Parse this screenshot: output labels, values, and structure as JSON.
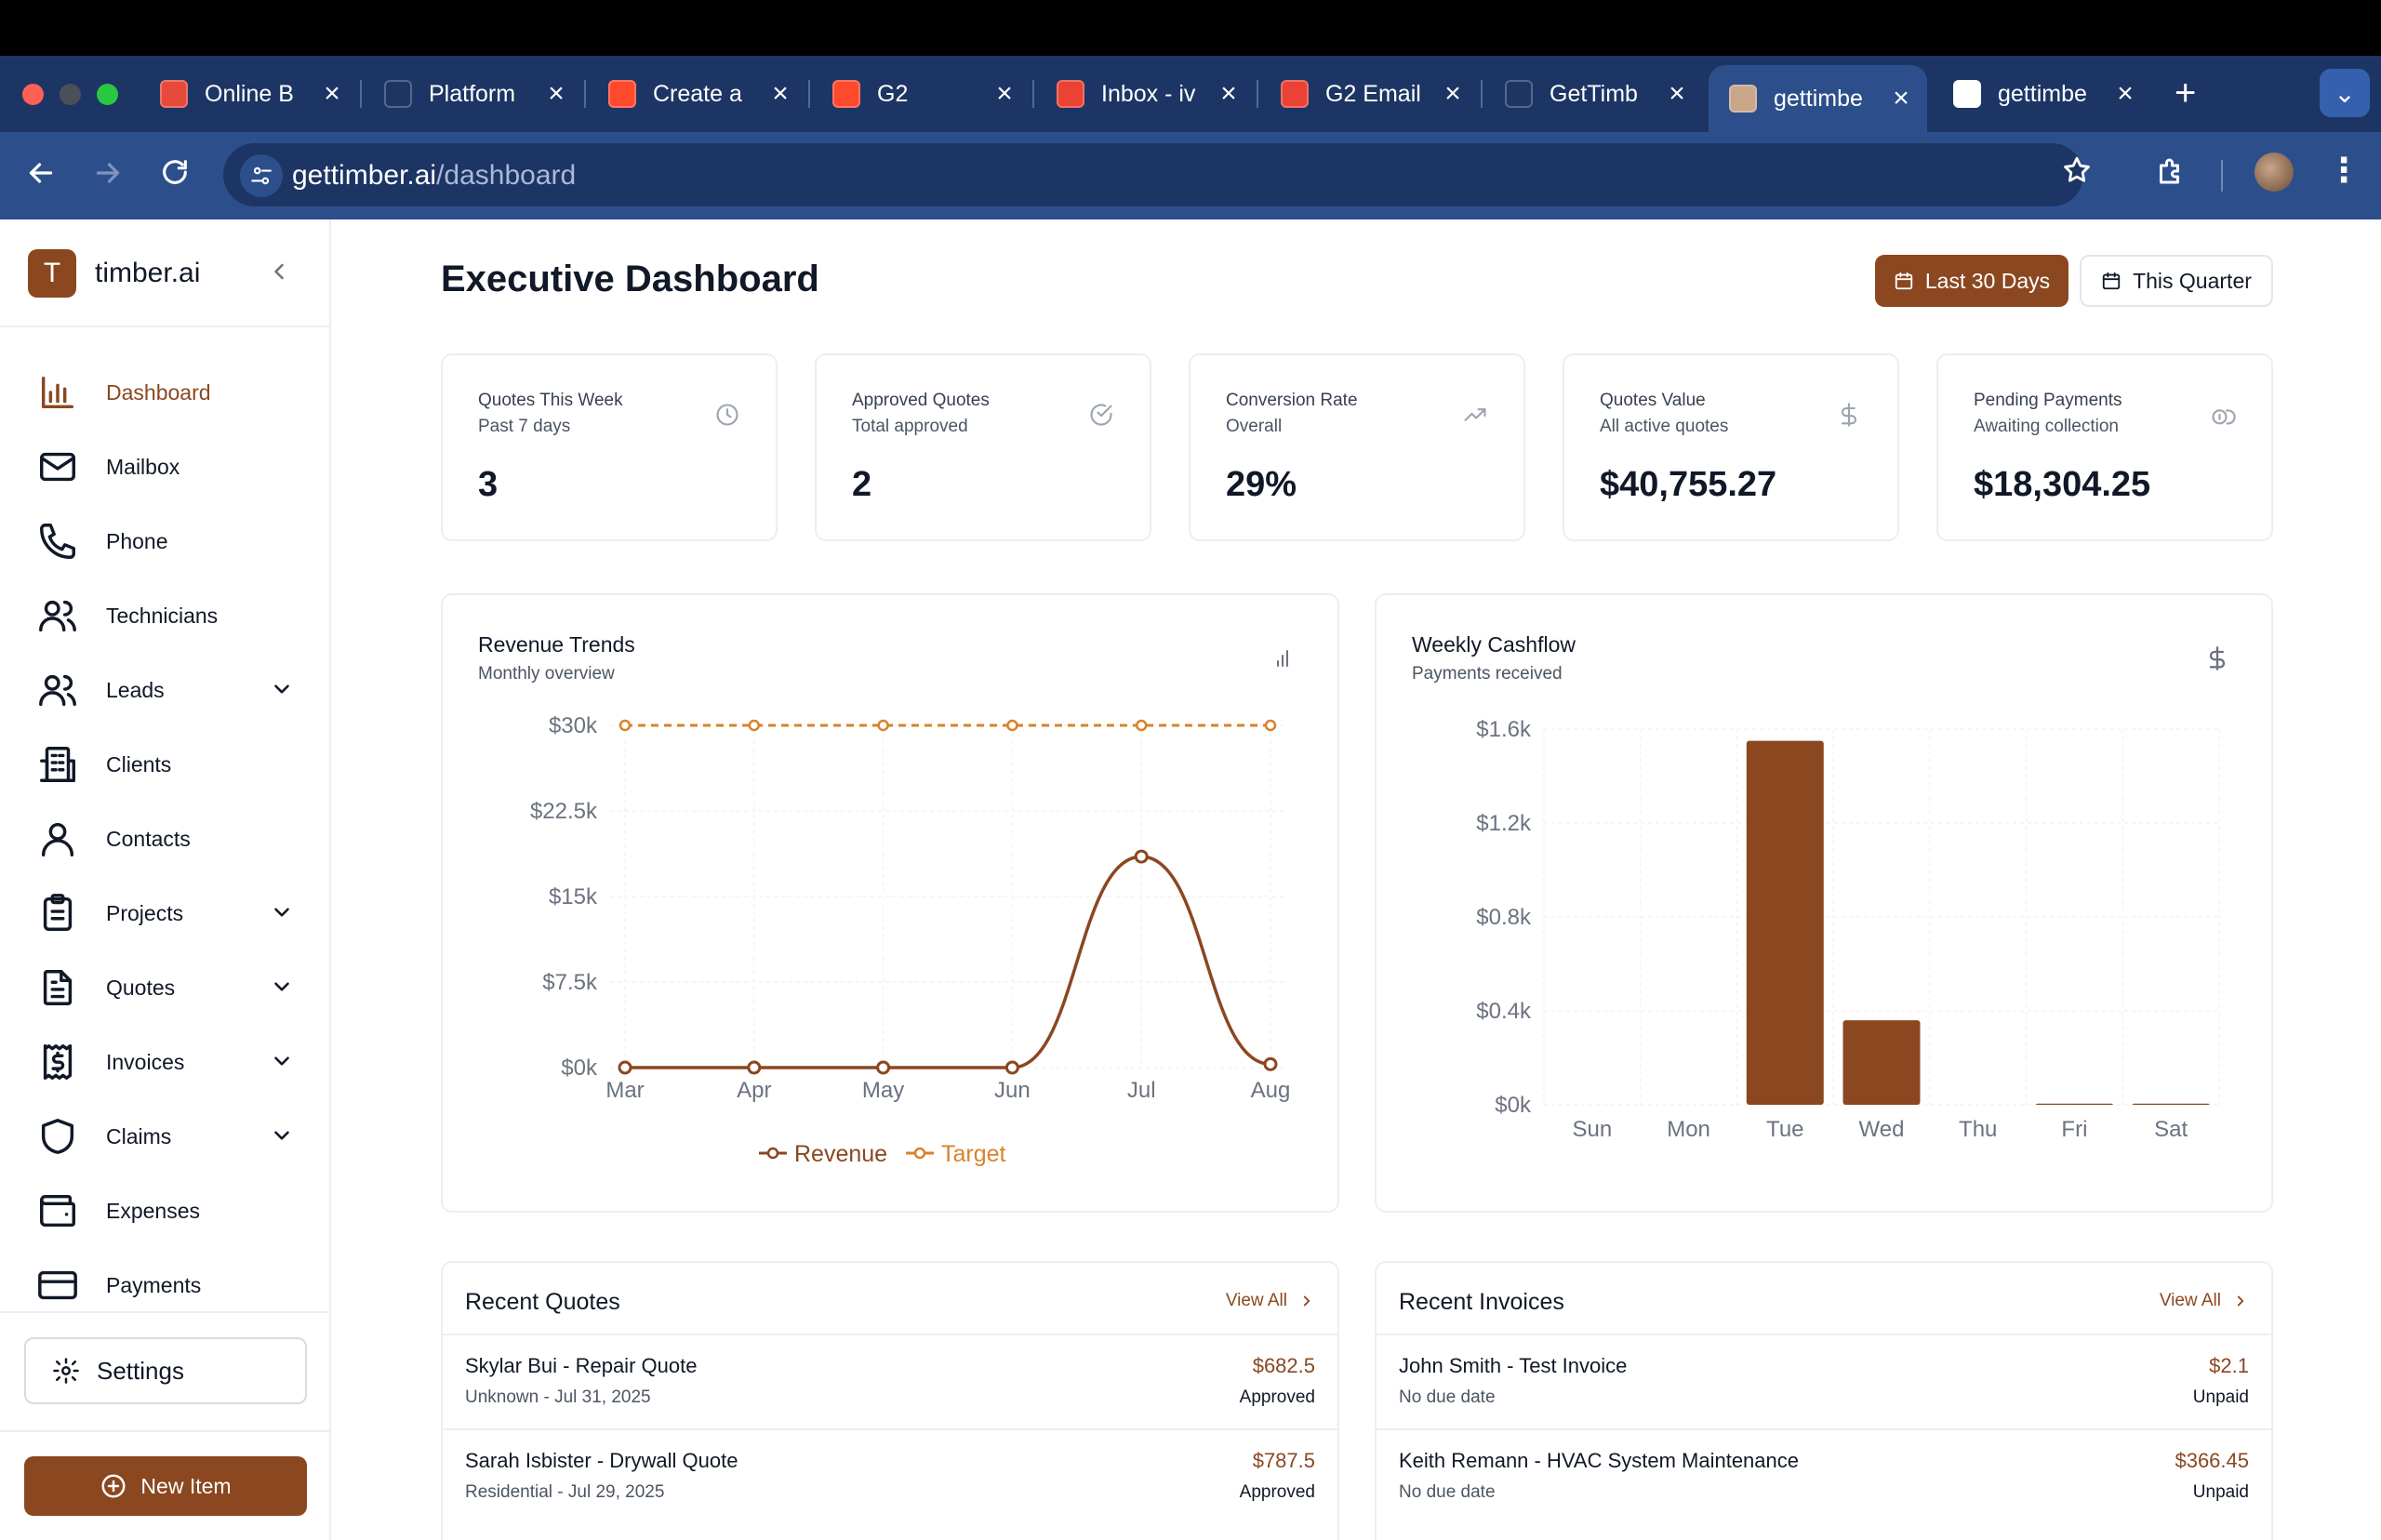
{
  "browser": {
    "tabs": [
      {
        "title": "Online B",
        "favicon": "app-icon",
        "color": "#e64a3c"
      },
      {
        "title": "Platform",
        "favicon": "slashed-circle-icon",
        "color": "#1d3564"
      },
      {
        "title": "Create a",
        "favicon": "g2-icon",
        "color": "#ff492c"
      },
      {
        "title": "G2",
        "favicon": "g2-icon",
        "color": "#ff492c"
      },
      {
        "title": "Inbox - iv",
        "favicon": "gmail-icon",
        "color": "#ea4335"
      },
      {
        "title": "G2 Email",
        "favicon": "gmail-icon",
        "color": "#ea4335"
      },
      {
        "title": "GetTimb",
        "favicon": "openai-icon",
        "color": "#1d3564"
      },
      {
        "title": "gettimbe",
        "favicon": "image-icon",
        "color": "#c9a58a"
      },
      {
        "title": "gettimbe",
        "favicon": "google-icon",
        "color": "#ffffff"
      }
    ],
    "url_domain": "gettimber.ai",
    "url_path": "/dashboard"
  },
  "sidebar": {
    "logo_letter": "T",
    "brand": "timber.ai",
    "items": [
      {
        "label": "Dashboard",
        "icon": "bar-chart-icon",
        "active": true,
        "expandable": false
      },
      {
        "label": "Mailbox",
        "icon": "mail-icon",
        "active": false,
        "expandable": false
      },
      {
        "label": "Phone",
        "icon": "phone-icon",
        "active": false,
        "expandable": false
      },
      {
        "label": "Technicians",
        "icon": "users-icon",
        "active": false,
        "expandable": false
      },
      {
        "label": "Leads",
        "icon": "users-icon",
        "active": false,
        "expandable": true
      },
      {
        "label": "Clients",
        "icon": "building-icon",
        "active": false,
        "expandable": false
      },
      {
        "label": "Contacts",
        "icon": "user-icon",
        "active": false,
        "expandable": false
      },
      {
        "label": "Projects",
        "icon": "clipboard-icon",
        "active": false,
        "expandable": true
      },
      {
        "label": "Quotes",
        "icon": "file-text-icon",
        "active": false,
        "expandable": true
      },
      {
        "label": "Invoices",
        "icon": "receipt-icon",
        "active": false,
        "expandable": true
      },
      {
        "label": "Claims",
        "icon": "shield-icon",
        "active": false,
        "expandable": true
      },
      {
        "label": "Expenses",
        "icon": "wallet-icon",
        "active": false,
        "expandable": false
      },
      {
        "label": "Payments",
        "icon": "credit-card-icon",
        "active": false,
        "expandable": false
      }
    ],
    "settings_label": "Settings",
    "new_item_label": "New Item"
  },
  "header": {
    "title": "Executive Dashboard",
    "range_active": "Last 30 Days",
    "range_other": "This Quarter"
  },
  "stats": [
    {
      "title": "Quotes This Week",
      "sub": "Past 7 days",
      "value": "3",
      "icon": "clock-icon"
    },
    {
      "title": "Approved Quotes",
      "sub": "Total approved",
      "value": "2",
      "icon": "check-circle-icon"
    },
    {
      "title": "Conversion Rate",
      "sub": "Overall",
      "value": "29%",
      "icon": "trending-up-icon"
    },
    {
      "title": "Quotes Value",
      "sub": "All active quotes",
      "value": "$40,755.27",
      "icon": "dollar-icon"
    },
    {
      "title": "Pending Payments",
      "sub": "Awaiting collection",
      "value": "$18,304.25",
      "icon": "coins-icon"
    }
  ],
  "revenue_card": {
    "title": "Revenue Trends",
    "sub": "Monthly overview",
    "icon": "bar-chart-icon"
  },
  "cashflow_card": {
    "title": "Weekly Cashflow",
    "sub": "Payments received",
    "icon": "dollar-icon"
  },
  "chart_data": [
    {
      "type": "line",
      "title": "Revenue Trends",
      "subtitle": "Monthly overview",
      "categories": [
        "Mar",
        "Apr",
        "May",
        "Jun",
        "Jul",
        "Aug"
      ],
      "y_ticks": [
        "$0k",
        "$7.5k",
        "$15k",
        "$22.5k",
        "$30k"
      ],
      "ylim": [
        0,
        30000
      ],
      "series": [
        {
          "name": "Revenue",
          "values": [
            0,
            0,
            0,
            0,
            18500,
            300
          ],
          "color": "#8b4720"
        },
        {
          "name": "Target",
          "values": [
            30000,
            30000,
            30000,
            30000,
            30000,
            30000
          ],
          "color": "#d9822b"
        }
      ],
      "legend": "bottom",
      "grid": true
    },
    {
      "type": "bar",
      "title": "Weekly Cashflow",
      "subtitle": "Payments received",
      "categories": [
        "Sun",
        "Mon",
        "Tue",
        "Wed",
        "Thu",
        "Fri",
        "Sat"
      ],
      "values": [
        0,
        0,
        1550,
        360,
        0,
        5,
        5
      ],
      "y_ticks": [
        "$0k",
        "$0.4k",
        "$0.8k",
        "$1.2k",
        "$1.6k"
      ],
      "ylim": [
        0,
        1600
      ],
      "color": "#8b4720",
      "grid": true
    }
  ],
  "recent_quotes": {
    "title": "Recent Quotes",
    "view_all": "View All",
    "rows": [
      {
        "title": "Skylar Bui - Repair Quote",
        "sub": "Unknown - Jul 31, 2025",
        "amount": "$682.5",
        "status": "Approved"
      },
      {
        "title": "Sarah Isbister - Drywall Quote",
        "sub": "Residential - Jul 29, 2025",
        "amount": "$787.5",
        "status": "Approved"
      }
    ]
  },
  "recent_invoices": {
    "title": "Recent Invoices",
    "view_all": "View All",
    "rows": [
      {
        "title": "John Smith - Test Invoice",
        "sub": "No due date",
        "amount": "$2.1",
        "status": "Unpaid"
      },
      {
        "title": "Keith Remann - HVAC System Maintenance",
        "sub": "No due date",
        "amount": "$366.45",
        "status": "Unpaid"
      }
    ]
  }
}
